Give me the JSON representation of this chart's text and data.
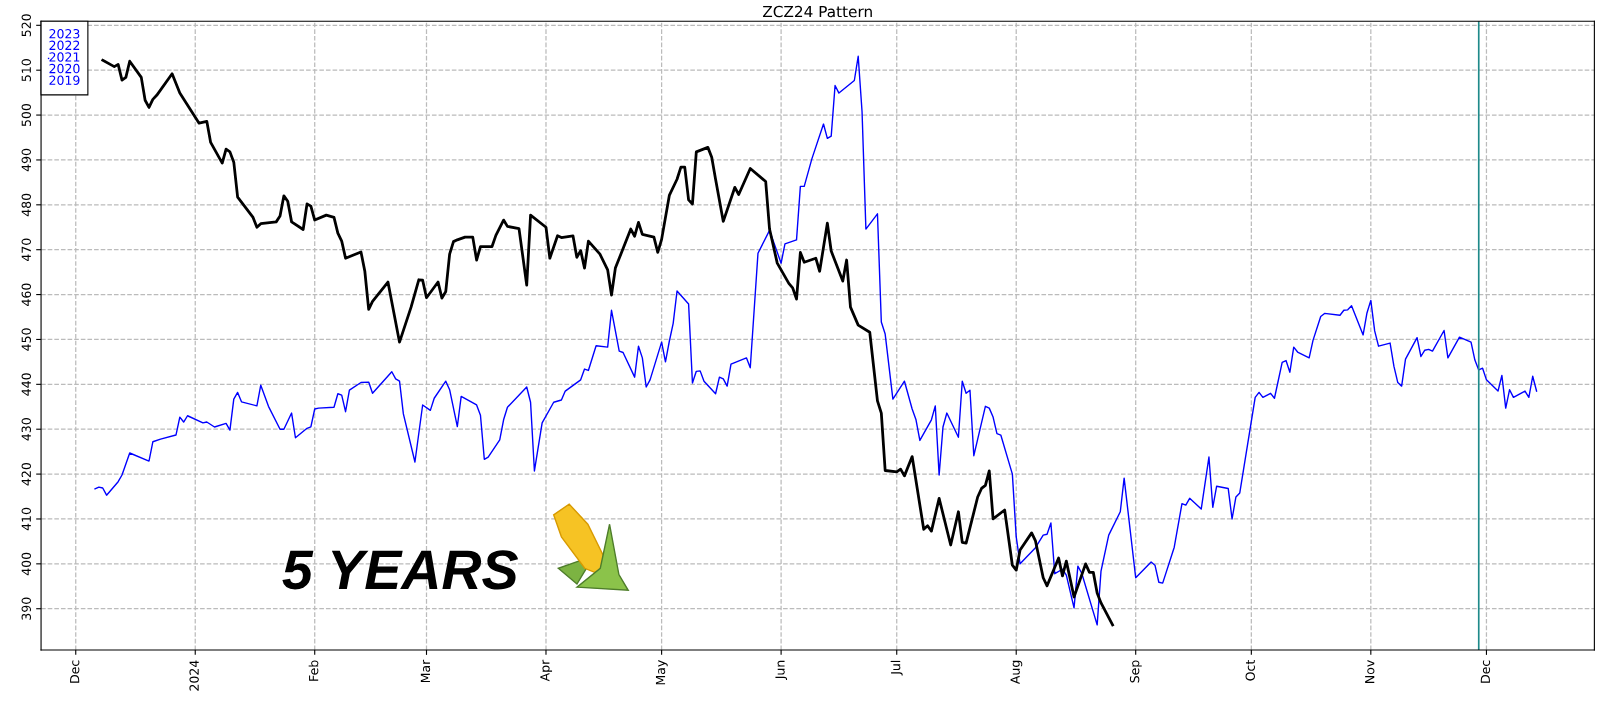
{
  "chart_data": {
    "type": "line",
    "title": "ZCZ24 Pattern",
    "xlim": [
      "2023-11-22",
      "2024-12-29"
    ],
    "ylim": [
      380.8,
      520.9
    ],
    "xticks": [
      {
        "value": "2023-12-01",
        "label": "Dec"
      },
      {
        "value": "2024-01-01",
        "label": "2024"
      },
      {
        "value": "2024-02-01",
        "label": "Feb"
      },
      {
        "value": "2024-03-01",
        "label": "Mar"
      },
      {
        "value": "2024-04-01",
        "label": "Apr"
      },
      {
        "value": "2024-05-01",
        "label": "May"
      },
      {
        "value": "2024-06-01",
        "label": "Jun"
      },
      {
        "value": "2024-07-01",
        "label": "Jul"
      },
      {
        "value": "2024-08-01",
        "label": "Aug"
      },
      {
        "value": "2024-09-01",
        "label": "Sep"
      },
      {
        "value": "2024-10-01",
        "label": "Oct"
      },
      {
        "value": "2024-11-01",
        "label": "Nov"
      },
      {
        "value": "2024-12-01",
        "label": "Dec"
      }
    ],
    "yticks": [
      390,
      400,
      410,
      420,
      430,
      440,
      450,
      460,
      470,
      480,
      490,
      500,
      510,
      520
    ],
    "grid": true,
    "legend": "top left",
    "line_style": "solid",
    "marker": "none",
    "ref_lines": [
      {
        "axis": "x",
        "value": "2024-11-29",
        "color": "#1f8a8a"
      }
    ],
    "annotations": [
      "5 YEARS"
    ],
    "series": [
      {
        "color": "#000000",
        "x": [
          "2023-12-08",
          "2023-12-11",
          "2023-12-12",
          "2023-12-13",
          "2023-12-14",
          "2023-12-15",
          "2023-12-18",
          "2023-12-19",
          "2023-12-20",
          "2023-12-21",
          "2023-12-22",
          "2023-12-26",
          "2023-12-28",
          "2024-01-02",
          "2024-01-04",
          "2024-01-05",
          "2024-01-08",
          "2024-01-09",
          "2024-01-10",
          "2024-01-11",
          "2024-01-12",
          "2024-01-16",
          "2024-01-17",
          "2024-01-18",
          "2024-01-22",
          "2024-01-23",
          "2024-01-24",
          "2024-01-25",
          "2024-01-26",
          "2024-01-29",
          "2024-01-30",
          "2024-01-31",
          "2024-02-01",
          "2024-02-04",
          "2024-02-06",
          "2024-02-07",
          "2024-02-08",
          "2024-02-09",
          "2024-02-13",
          "2024-02-14",
          "2024-02-15",
          "2024-02-16",
          "2024-02-20",
          "2024-02-23",
          "2024-02-26",
          "2024-02-28",
          "2024-02-29",
          "2024-03-01",
          "2024-03-04",
          "2024-03-05",
          "2024-03-06",
          "2024-03-07",
          "2024-03-08",
          "2024-03-09",
          "2024-03-11",
          "2024-03-13",
          "2024-03-14",
          "2024-03-15",
          "2024-03-18",
          "2024-03-19",
          "2024-03-21",
          "2024-03-22",
          "2024-03-25",
          "2024-03-27",
          "2024-03-28",
          "2024-04-01",
          "2024-04-02",
          "2024-04-04",
          "2024-04-05",
          "2024-04-08",
          "2024-04-09",
          "2024-04-10",
          "2024-04-11",
          "2024-04-12",
          "2024-04-15",
          "2024-04-17",
          "2024-04-18",
          "2024-04-19",
          "2024-04-23",
          "2024-04-24",
          "2024-04-25",
          "2024-04-26",
          "2024-04-29",
          "2024-04-30",
          "2024-05-01",
          "2024-05-03",
          "2024-05-05",
          "2024-05-06",
          "2024-05-07",
          "2024-05-08",
          "2024-05-09",
          "2024-05-10",
          "2024-05-13",
          "2024-05-14",
          "2024-05-15",
          "2024-05-17",
          "2024-05-20",
          "2024-05-21",
          "2024-05-24",
          "2024-05-28",
          "2024-05-29",
          "2024-05-31",
          "2024-06-03",
          "2024-06-04",
          "2024-06-05",
          "2024-06-06",
          "2024-06-07",
          "2024-06-10",
          "2024-06-11",
          "2024-06-13",
          "2024-06-14",
          "2024-06-17",
          "2024-06-18",
          "2024-06-19",
          "2024-06-21",
          "2024-06-24",
          "2024-06-26",
          "2024-06-27",
          "2024-06-28",
          "2024-07-01",
          "2024-07-02",
          "2024-07-03",
          "2024-07-05",
          "2024-07-08",
          "2024-07-09",
          "2024-07-10",
          "2024-07-12",
          "2024-07-15",
          "2024-07-17",
          "2024-07-18",
          "2024-07-19",
          "2024-07-22",
          "2024-07-23",
          "2024-07-24",
          "2024-07-25",
          "2024-07-26",
          "2024-07-29",
          "2024-07-31",
          "2024-08-01",
          "2024-08-02",
          "2024-08-05",
          "2024-08-06",
          "2024-08-08",
          "2024-08-09",
          "2024-08-12",
          "2024-08-13",
          "2024-08-14",
          "2024-08-16",
          "2024-08-19",
          "2024-08-20",
          "2024-08-21",
          "2024-08-22",
          "2024-08-23",
          "2024-08-26"
        ],
        "values": [
          512.2,
          510.8,
          511.3,
          507.8,
          508.4,
          512.0,
          508.4,
          503.3,
          501.7,
          503.5,
          504.4,
          509.2,
          504.9,
          498.2,
          498.6,
          493.9,
          489.3,
          492.4,
          491.8,
          489.5,
          481.7,
          477.2,
          475.0,
          475.8,
          476.2,
          477.5,
          482.0,
          480.8,
          476.2,
          474.5,
          480.2,
          479.7,
          476.6,
          477.7,
          477.2,
          473.7,
          471.9,
          468.1,
          469.5,
          465.2,
          456.7,
          458.5,
          462.8,
          449.4,
          457.2,
          463.3,
          463.2,
          459.3,
          462.8,
          459.2,
          460.7,
          469.0,
          471.8,
          472.2,
          472.8,
          472.8,
          467.7,
          470.7,
          470.7,
          473.2,
          476.6,
          475.2,
          474.7,
          462.1,
          477.7,
          475.0,
          468.1,
          473.1,
          472.7,
          473.1,
          468.3,
          469.8,
          465.9,
          471.9,
          469.0,
          465.5,
          459.9,
          465.9,
          474.6,
          473.0,
          476.1,
          473.4,
          472.8,
          469.4,
          472.3,
          482.1,
          485.7,
          488.4,
          488.4,
          481.1,
          480.2,
          491.8,
          492.8,
          490.6,
          485.7,
          476.3,
          483.9,
          482.3,
          488.1,
          485.2,
          474.6,
          467.0,
          462.5,
          461.5,
          459.0,
          469.4,
          467.2,
          468.1,
          465.2,
          475.9,
          469.7,
          463.0,
          467.7,
          457.2,
          453.2,
          451.6,
          436.3,
          433.6,
          420.8,
          420.5,
          421.1,
          419.6,
          423.9,
          407.7,
          408.5,
          407.3,
          414.6,
          404.2,
          411.6,
          404.8,
          404.6,
          414.9,
          416.8,
          417.5,
          420.7,
          410.0,
          412.0,
          399.7,
          398.6,
          403.1,
          406.9,
          405.1,
          396.9,
          395.1,
          401.3,
          397.3,
          400.6,
          392.6,
          400.0,
          398.1,
          398.1,
          393.5,
          391.3,
          386.4
        ]
      },
      {
        "name": "2023\n2022\n2021\n2020\n2019",
        "color": "#0000ff",
        "x": [
          "2023-12-06",
          "2023-12-07",
          "2023-12-08",
          "2023-12-09",
          "2023-12-12",
          "2023-12-13",
          "2023-12-15",
          "2023-12-20",
          "2023-12-21",
          "2023-12-23",
          "2023-12-27",
          "2023-12-28",
          "2023-12-29",
          "2023-12-30",
          "2024-01-03",
          "2024-01-04",
          "2024-01-06",
          "2024-01-09",
          "2024-01-10",
          "2024-01-11",
          "2024-01-12",
          "2024-01-13",
          "2024-01-17",
          "2024-01-18",
          "2024-01-20",
          "2024-01-23",
          "2024-01-24",
          "2024-01-26",
          "2024-01-27",
          "2024-01-30",
          "2024-01-31",
          "2024-02-01",
          "2024-02-02",
          "2024-02-06",
          "2024-02-07",
          "2024-02-08",
          "2024-02-09",
          "2024-02-10",
          "2024-02-13",
          "2024-02-15",
          "2024-02-16",
          "2024-02-21",
          "2024-02-22",
          "2024-02-23",
          "2024-02-24",
          "2024-02-27",
          "2024-02-29",
          "2024-03-02",
          "2024-03-03",
          "2024-03-06",
          "2024-03-07",
          "2024-03-09",
          "2024-03-10",
          "2024-03-14",
          "2024-03-15",
          "2024-03-16",
          "2024-03-17",
          "2024-03-20",
          "2024-03-21",
          "2024-03-22",
          "2024-03-27",
          "2024-03-28",
          "2024-03-29",
          "2024-03-31",
          "2024-04-03",
          "2024-04-05",
          "2024-04-06",
          "2024-04-10",
          "2024-04-11",
          "2024-04-12",
          "2024-04-14",
          "2024-04-17",
          "2024-04-18",
          "2024-04-20",
          "2024-04-21",
          "2024-04-24",
          "2024-04-25",
          "2024-04-26",
          "2024-04-27",
          "2024-04-28",
          "2024-05-01",
          "2024-05-02",
          "2024-05-03",
          "2024-05-04",
          "2024-05-05",
          "2024-05-08",
          "2024-05-09",
          "2024-05-10",
          "2024-05-11",
          "2024-05-12",
          "2024-05-15",
          "2024-05-16",
          "2024-05-17",
          "2024-05-18",
          "2024-05-19",
          "2024-05-23",
          "2024-05-24",
          "2024-05-26",
          "2024-05-29",
          "2024-06-01",
          "2024-06-02",
          "2024-06-05",
          "2024-06-06",
          "2024-06-07",
          "2024-06-09",
          "2024-06-12",
          "2024-06-13",
          "2024-06-14",
          "2024-06-15",
          "2024-06-16",
          "2024-06-20",
          "2024-06-21",
          "2024-06-22",
          "2024-06-23",
          "2024-06-26",
          "2024-06-27",
          "2024-06-28",
          "2024-06-30",
          "2024-07-03",
          "2024-07-05",
          "2024-07-06",
          "2024-07-07",
          "2024-07-10",
          "2024-07-11",
          "2024-07-12",
          "2024-07-13",
          "2024-07-14",
          "2024-07-17",
          "2024-07-18",
          "2024-07-19",
          "2024-07-20",
          "2024-07-21",
          "2024-07-24",
          "2024-07-25",
          "2024-07-26",
          "2024-07-27",
          "2024-07-28",
          "2024-07-31",
          "2024-08-01",
          "2024-08-02",
          "2024-08-06",
          "2024-08-08",
          "2024-08-09",
          "2024-08-10",
          "2024-08-11",
          "2024-08-13",
          "2024-08-14",
          "2024-08-16",
          "2024-08-17",
          "2024-08-18",
          "2024-08-22",
          "2024-08-23",
          "2024-08-25",
          "2024-08-28",
          "2024-08-29",
          "2024-09-01",
          "2024-09-05",
          "2024-09-06",
          "2024-09-07",
          "2024-09-08",
          "2024-09-11",
          "2024-09-13",
          "2024-09-14",
          "2024-09-15",
          "2024-09-18",
          "2024-09-20",
          "2024-09-21",
          "2024-09-22",
          "2024-09-25",
          "2024-09-26",
          "2024-09-27",
          "2024-09-28",
          "2024-10-02",
          "2024-10-03",
          "2024-10-04",
          "2024-10-06",
          "2024-10-07",
          "2024-10-09",
          "2024-10-10",
          "2024-10-11",
          "2024-10-12",
          "2024-10-13",
          "2024-10-16",
          "2024-10-17",
          "2024-10-19",
          "2024-10-20",
          "2024-10-24",
          "2024-10-25",
          "2024-10-26",
          "2024-10-27",
          "2024-10-30",
          "2024-10-31",
          "2024-11-01",
          "2024-11-02",
          "2024-11-03",
          "2024-11-06",
          "2024-11-07",
          "2024-11-08",
          "2024-11-09",
          "2024-11-10",
          "2024-11-13",
          "2024-11-14",
          "2024-11-15",
          "2024-11-16",
          "2024-11-17",
          "2024-11-20",
          "2024-11-21",
          "2024-11-24",
          "2024-11-27",
          "2024-11-28",
          "2024-11-29",
          "2024-11-30",
          "2024-12-01",
          "2024-12-04",
          "2024-12-05",
          "2024-12-06",
          "2024-12-07",
          "2024-12-08",
          "2024-12-11",
          "2024-12-12",
          "2024-12-13",
          "2024-12-14"
        ],
        "values": [
          416.7,
          417.1,
          416.9,
          415.3,
          418.3,
          419.8,
          424.7,
          422.9,
          427.2,
          427.8,
          428.7,
          432.7,
          431.6,
          433.0,
          431.4,
          431.6,
          430.5,
          431.3,
          429.8,
          436.7,
          438.2,
          436.1,
          435.2,
          439.8,
          435.1,
          430.0,
          430.0,
          433.6,
          428.1,
          430.2,
          430.5,
          434.5,
          434.7,
          434.9,
          437.9,
          437.6,
          433.9,
          438.7,
          440.4,
          440.5,
          438.0,
          442.8,
          441.2,
          440.7,
          433.4,
          422.7,
          435.4,
          434.2,
          436.9,
          440.7,
          438.8,
          430.6,
          437.3,
          435.4,
          433.1,
          423.3,
          423.8,
          427.6,
          432.1,
          434.9,
          439.4,
          436.0,
          420.7,
          431.4,
          436.0,
          436.5,
          438.5,
          441.0,
          443.4,
          443.1,
          448.6,
          448.3,
          456.5,
          447.4,
          447.1,
          441.6,
          448.5,
          445.9,
          439.4,
          441.0,
          449.4,
          445.0,
          449.6,
          453.6,
          460.8,
          457.9,
          440.3,
          442.9,
          443.0,
          440.7,
          437.9,
          441.6,
          441.2,
          439.6,
          444.5,
          445.9,
          443.7,
          469.2,
          474.3,
          467.0,
          471.3,
          472.2,
          484.1,
          484.1,
          490.3,
          498.0,
          494.8,
          495.3,
          506.6,
          504.9,
          507.7,
          513.1,
          500.8,
          474.6,
          478.0,
          453.9,
          451.2,
          436.7,
          440.7,
          434.5,
          432.1,
          427.5,
          432.1,
          435.2,
          419.8,
          430.5,
          433.6,
          428.2,
          440.7,
          438.0,
          438.7,
          424.1,
          435.1,
          434.7,
          432.7,
          429.0,
          428.7,
          420.0,
          406.0,
          400.0,
          403.6,
          406.4,
          406.6,
          409.1,
          397.8,
          398.8,
          397.5,
          390.2,
          399.5,
          397.9,
          386.4,
          398.4,
          406.4,
          411.6,
          419.1,
          396.9,
          400.4,
          399.7,
          395.9,
          395.7,
          403.7,
          413.4,
          413.1,
          414.6,
          412.2,
          423.8,
          412.6,
          417.3,
          416.8,
          410.0,
          414.9,
          415.8,
          437.1,
          438.2,
          437.1,
          438.0,
          436.9,
          444.9,
          445.3,
          442.7,
          448.3,
          447.2,
          445.9,
          449.8,
          455.1,
          455.8,
          455.4,
          456.5,
          456.6,
          457.5,
          451.0,
          455.9,
          458.7,
          451.9,
          448.5,
          449.2,
          444.0,
          440.4,
          439.6,
          445.6,
          450.4,
          446.2,
          447.6,
          447.8,
          447.4,
          452.0,
          445.9,
          450.5,
          449.4,
          445.4,
          443.2,
          443.6,
          441.0,
          438.5,
          442.0,
          434.7,
          438.8,
          437.1,
          438.5,
          437.1,
          441.8,
          438.5
        ]
      }
    ]
  }
}
